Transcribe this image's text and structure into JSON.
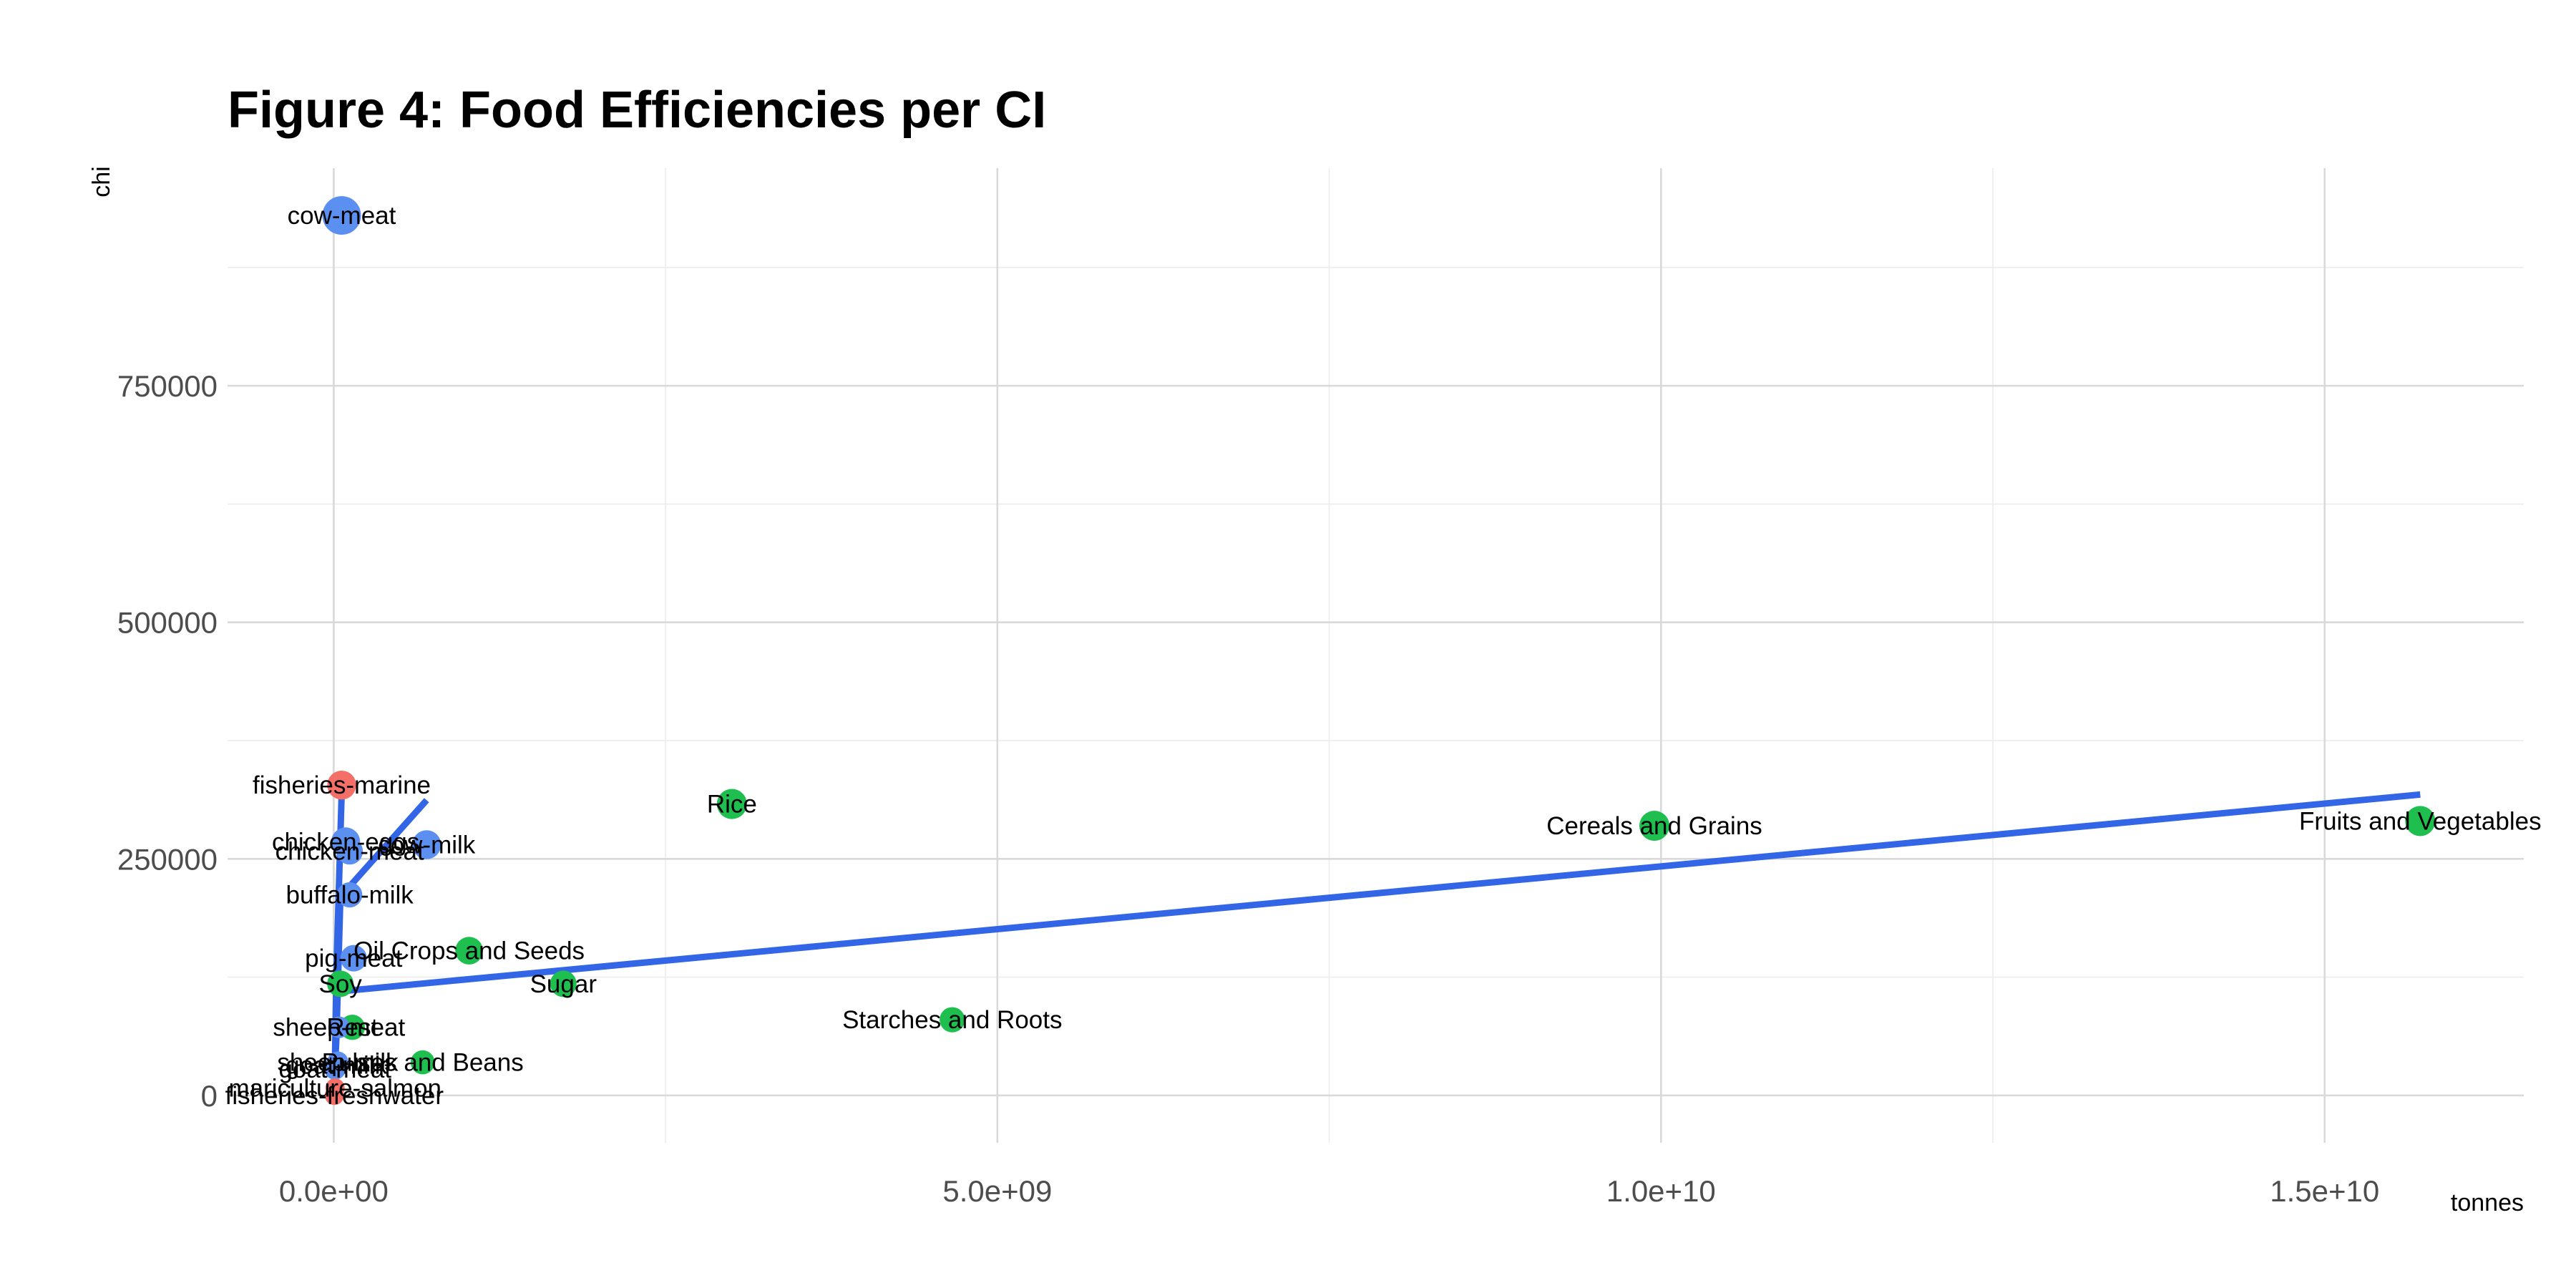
{
  "chart_data": {
    "type": "scatter",
    "title": "Figure 4: Food Efficiencies per CI",
    "xlabel": "tonnes",
    "ylabel": "chi",
    "xlim": [
      -800000000,
      16500000000
    ],
    "ylim": [
      -50000,
      980000
    ],
    "x_ticks": [
      {
        "value": 0,
        "label": "0.0e+00"
      },
      {
        "value": 5000000000,
        "label": "5.0e+09"
      },
      {
        "value": 10000000000,
        "label": "1.0e+10"
      },
      {
        "value": 15000000000,
        "label": "1.5e+10"
      }
    ],
    "y_ticks": [
      {
        "value": 0,
        "label": "0"
      },
      {
        "value": 250000,
        "label": "250000"
      },
      {
        "value": 500000,
        "label": "500000"
      },
      {
        "value": 750000,
        "label": "750000"
      }
    ],
    "grid": true,
    "legend": "none",
    "colors": {
      "animal": "#5b8ff0",
      "plant": "#1fbf4f",
      "fish": "#f36f68",
      "trend": "#3366e6"
    },
    "points": [
      {
        "label": "cow-meat",
        "x": 60000000,
        "y": 930000,
        "group": "animal",
        "size": 1.0
      },
      {
        "label": "fisheries-marine",
        "x": 60000000,
        "y": 328000,
        "group": "fish",
        "size": 0.6
      },
      {
        "label": "chicken-eggs",
        "x": 90000000,
        "y": 268000,
        "group": "animal",
        "size": 0.6
      },
      {
        "label": "cow-milk",
        "x": 700000000,
        "y": 265000,
        "group": "animal",
        "size": 0.6
      },
      {
        "label": "chicken-meat",
        "x": 120000000,
        "y": 258000,
        "group": "animal",
        "size": 0.5
      },
      {
        "label": "buffalo-milk",
        "x": 120000000,
        "y": 212000,
        "group": "animal",
        "size": 0.45
      },
      {
        "label": "pig-meat",
        "x": 150000000,
        "y": 145000,
        "group": "animal",
        "size": 0.5
      },
      {
        "label": "Soy",
        "x": 50000000,
        "y": 118000,
        "group": "plant",
        "size": 0.5
      },
      {
        "label": "sheep-meat",
        "x": 40000000,
        "y": 72000,
        "group": "animal",
        "size": 0.3
      },
      {
        "label": "Rest",
        "x": 140000000,
        "y": 72000,
        "group": "plant",
        "size": 0.45
      },
      {
        "label": "sheep-milk",
        "x": 30000000,
        "y": 35000,
        "group": "animal",
        "size": 0.3
      },
      {
        "label": "goat-milk",
        "x": 20000000,
        "y": 32000,
        "group": "animal",
        "size": 0.3
      },
      {
        "label": "goat-meat",
        "x": 10000000,
        "y": 28000,
        "group": "animal",
        "size": 0.3
      },
      {
        "label": "Pulses and Beans",
        "x": 670000000,
        "y": 35000,
        "group": "plant",
        "size": 0.4
      },
      {
        "label": "mariculture-salmon",
        "x": 10000000,
        "y": 8000,
        "group": "fish",
        "size": 0.2
      },
      {
        "label": "fisheries-freshwater",
        "x": 5000000,
        "y": 0,
        "group": "fish",
        "size": 0.2
      },
      {
        "label": "Oil Crops and Seeds",
        "x": 1020000000,
        "y": 153000,
        "group": "plant",
        "size": 0.55
      },
      {
        "label": "Sugar",
        "x": 1730000000,
        "y": 118000,
        "group": "plant",
        "size": 0.5
      },
      {
        "label": "Rice",
        "x": 3000000000,
        "y": 308000,
        "group": "plant",
        "size": 0.65
      },
      {
        "label": "Starches and Roots",
        "x": 4660000000,
        "y": 80000,
        "group": "plant",
        "size": 0.45
      },
      {
        "label": "Cereals and Grains",
        "x": 9950000000,
        "y": 285000,
        "group": "plant",
        "size": 0.65
      },
      {
        "label": "Fruits and Vegetables",
        "x": 15720000000,
        "y": 290000,
        "group": "plant",
        "size": 0.65
      }
    ],
    "trend_lines": [
      {
        "name": "fish",
        "points": [
          [
            60000000,
            320000
          ],
          [
            20000000,
            130000
          ],
          [
            5000000,
            0
          ]
        ]
      },
      {
        "name": "animal",
        "points": [
          [
            700000000,
            312000
          ],
          [
            50000000,
            210000
          ],
          [
            20000000,
            60000
          ],
          [
            0,
            0
          ]
        ]
      },
      {
        "name": "plant",
        "points": [
          [
            50000000,
            110000
          ],
          [
            15720000000,
            318000
          ]
        ]
      }
    ]
  }
}
